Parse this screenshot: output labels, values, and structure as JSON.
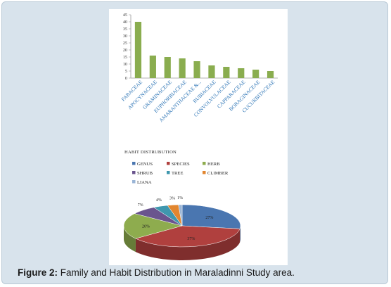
{
  "caption": {
    "label": "Figure 2:",
    "text": " Family and Habit Distribution in Maraladinni Study area."
  },
  "colors": {
    "frame_bg": "#d8e3ec",
    "bar": "#8aad4f",
    "axis_text": "#2e75b6",
    "pie": [
      "#4a76b0",
      "#b0403e",
      "#8eac4e",
      "#6a548e",
      "#3f97ae",
      "#e2862f",
      "#9ab5d6"
    ]
  },
  "chart_data": [
    {
      "type": "bar",
      "title": "",
      "xlabel": "",
      "ylabel": "",
      "categories": [
        "FABACEAE",
        "APOCYNACEAE",
        "GRAMINACEAE",
        "EUPHORBIACEAE",
        "AMARANTHACEAE &...",
        "RUBIACEAE",
        "CONVOLVULACEAE",
        "CAPPARACEAE",
        "BORAGINACEAE",
        "CUCURBITACEAE"
      ],
      "values": [
        40,
        16,
        15,
        14,
        12,
        9,
        8,
        7,
        6,
        5
      ],
      "ylim": [
        0,
        45
      ],
      "yticks": [
        0,
        5,
        10,
        15,
        20,
        25,
        30,
        35,
        40,
        45
      ],
      "grid": false
    },
    {
      "type": "pie",
      "style": "3d",
      "title": "HABIT DISTRUBUTION",
      "legend_position": "top",
      "labels": [
        "GENUS",
        "SPECIES",
        "HERB",
        "SHRUB",
        "TREE",
        "CLIMBER",
        "LIANA"
      ],
      "values": [
        27,
        37,
        20,
        7,
        4,
        3,
        1
      ],
      "data_labels": [
        "27%",
        "37%",
        "20%",
        "7%",
        "4%",
        "3%",
        "1%"
      ]
    }
  ]
}
